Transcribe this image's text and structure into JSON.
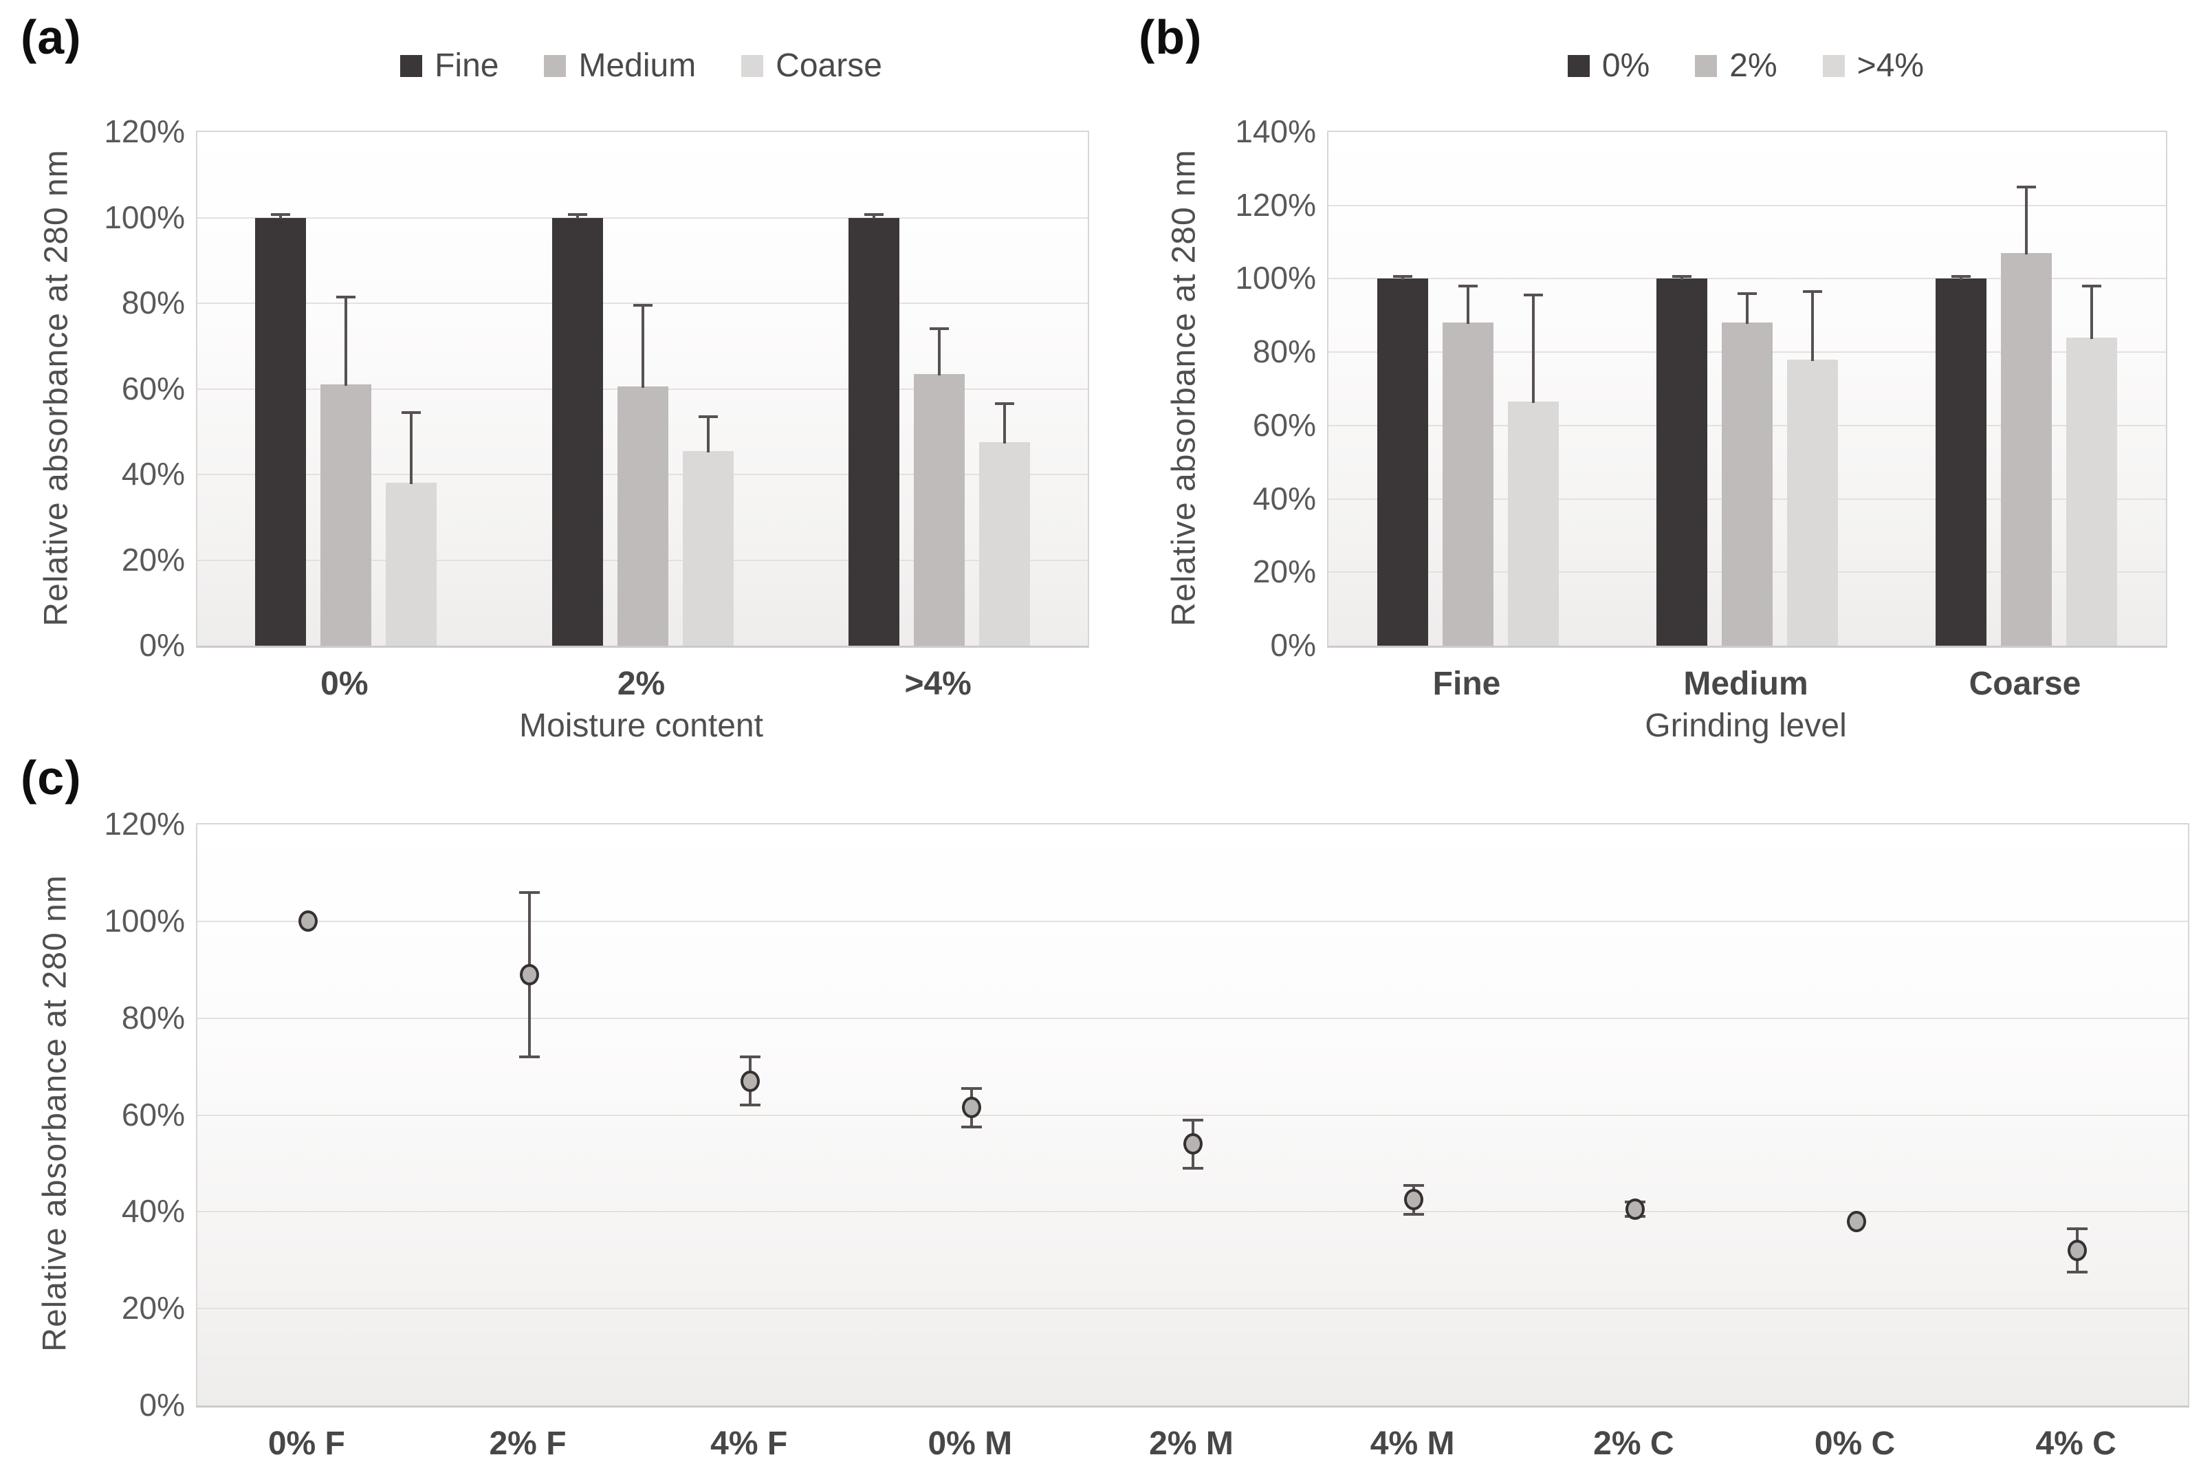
{
  "colors": {
    "series_dark": "#3b3637",
    "series_medium": "#bfbbba",
    "series_light": "#dbd9d8",
    "marker_fill": "#b7b3b1",
    "marker_stroke": "#353031",
    "error_bar": "#575152",
    "gridline": "#e3e1e0",
    "plot_border": "#d8d6d5",
    "tick_text": "#595959",
    "category_text": "#474747"
  },
  "chart_data": [
    {
      "id": "a",
      "type": "bar",
      "panel_label": "(a)",
      "categories": [
        "0%",
        "2%",
        ">4%"
      ],
      "series": [
        {
          "name": "Fine",
          "color": "#3b3637",
          "values": [
            100,
            100,
            100
          ],
          "err_up": [
            0.8,
            0.8,
            0.8
          ]
        },
        {
          "name": "Medium",
          "color": "#bfbbba",
          "values": [
            61,
            60.5,
            63.5
          ],
          "err_up": [
            20.5,
            19,
            10.5
          ]
        },
        {
          "name": "Coarse",
          "color": "#dbd9d8",
          "values": [
            38,
            45.5,
            47.5
          ],
          "err_up": [
            16.5,
            8,
            9
          ]
        }
      ],
      "xlabel": "Moisture content",
      "ylabel": "Relative absorbance at 280 nm",
      "ylim": [
        0,
        120
      ],
      "ytick_step": 20,
      "ytick_format": "percent",
      "grid": true,
      "legend_position": "top"
    },
    {
      "id": "b",
      "type": "bar",
      "panel_label": "(b)",
      "categories": [
        "Fine",
        "Medium",
        "Coarse"
      ],
      "series": [
        {
          "name": "0%",
          "color": "#3b3637",
          "values": [
            100,
            100,
            100
          ],
          "err_up": [
            0.7,
            0.7,
            0.7
          ]
        },
        {
          "name": "2%",
          "color": "#bfbbba",
          "values": [
            88,
            88,
            107
          ],
          "err_up": [
            10,
            8,
            18
          ]
        },
        {
          "name": ">4%",
          "color": "#dbd9d8",
          "values": [
            66.5,
            78,
            84
          ],
          "err_up": [
            29,
            18.5,
            14
          ]
        }
      ],
      "xlabel": "Grinding level",
      "ylabel": "Relative absorbance at 280 nm",
      "ylim": [
        0,
        140
      ],
      "ytick_step": 20,
      "ytick_format": "percent",
      "grid": true,
      "legend_position": "top"
    },
    {
      "id": "c",
      "type": "scatter",
      "panel_label": "(c)",
      "categories": [
        "0% F",
        "2% F",
        "4% F",
        "0% M",
        "2% M",
        "4% M",
        "2% C",
        "0% C",
        "4% C"
      ],
      "values": [
        100,
        89,
        67,
        61.5,
        54,
        42.5,
        40.5,
        38,
        32
      ],
      "err": [
        0,
        17,
        5,
        4,
        5,
        3,
        1.5,
        0,
        4.5
      ],
      "marker": {
        "fill": "#b7b3b1",
        "stroke": "#353031"
      },
      "xlabel": "",
      "ylabel": "Relative absorbance at 280 nm",
      "ylim": [
        0,
        120
      ],
      "ytick_step": 20,
      "ytick_format": "percent",
      "grid": true,
      "legend_position": "none"
    }
  ]
}
